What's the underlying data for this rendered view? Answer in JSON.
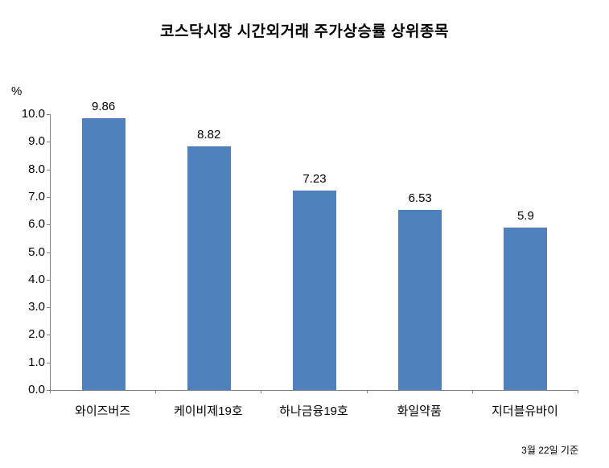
{
  "chart_data": {
    "type": "bar",
    "title": "코스닥시장 시간외거래  주가상승률 상위종목",
    "unit_label": "%",
    "categories": [
      "와이즈버즈",
      "케이비제19호",
      "하나금융19호",
      "화일약품",
      "지더블유바이"
    ],
    "values": [
      9.86,
      8.82,
      7.23,
      6.53,
      5.9
    ],
    "data_labels": [
      "9.86",
      "8.82",
      "7.23",
      "6.53",
      "5.9"
    ],
    "ylim": [
      0,
      10
    ],
    "ytick_step": 1.0,
    "ytick_labels": [
      "0.0",
      "1.0",
      "2.0",
      "3.0",
      "4.0",
      "5.0",
      "6.0",
      "7.0",
      "8.0",
      "9.0",
      "10.0"
    ],
    "grid": false,
    "legend": "none",
    "bar_color": "#4F81BD",
    "axis_color": "#7f7f7f",
    "xlabel": "",
    "ylabel": "%"
  },
  "footer": {
    "note": "3월 22일 기준"
  }
}
